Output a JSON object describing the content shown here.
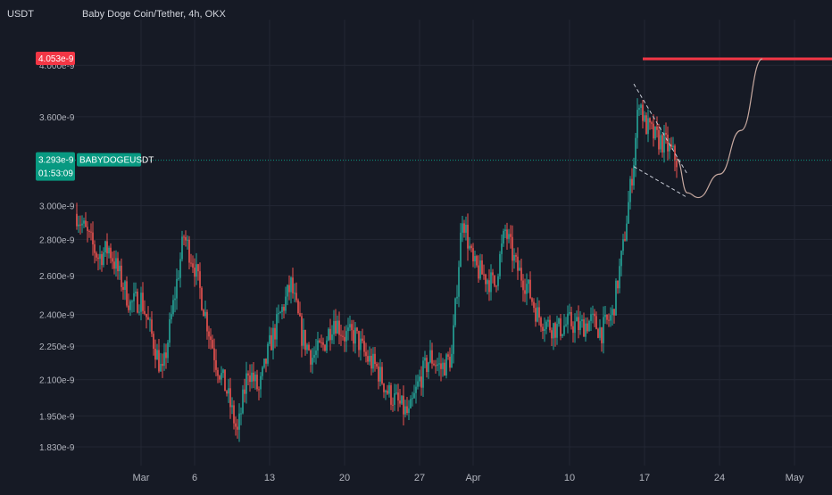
{
  "header": {
    "currency": "USDT",
    "symbol_title": "Baby Doge Coin/Tether, 4h, OKX"
  },
  "colors": {
    "background": "#161a25",
    "grid": "#232734",
    "up": "#26a69a",
    "down": "#ef5350",
    "resistance": "#f23645",
    "price_label": "#089981",
    "projection": "#c7a9a0",
    "pattern": "#c8ccd6"
  },
  "price_axis": {
    "ticks": [
      "4.000e-9",
      "3.600e-9",
      "3.000e-9",
      "2.800e-9",
      "2.600e-9",
      "2.400e-9",
      "2.250e-9",
      "2.100e-9",
      "1.950e-9",
      "1.830e-9"
    ],
    "resistance_label": "4.053e-9",
    "current_price_label": "3.293e-9",
    "countdown_label": "01:53:09",
    "symbol_tag": "BABYDOGEUSDT"
  },
  "time_axis": {
    "ticks": [
      "Mar",
      "6",
      "13",
      "20",
      "27",
      "Apr",
      "10",
      "17",
      "24",
      "May"
    ]
  },
  "chart_data": {
    "type": "candlestick",
    "title": "Baby Doge Coin/Tether, 4h, OKX",
    "ylabel": "USDT",
    "y_scale": "log",
    "ylim": [
      1.8e-09,
      4.2e-09
    ],
    "xlim": [
      "2023-02-23",
      "2023-05-03"
    ],
    "grid": true,
    "candle_interval": "4h",
    "close_path": [
      [
        "2023-02-23",
        2.95e-09
      ],
      [
        "2023-02-25",
        2.7e-09
      ],
      [
        "2023-02-26",
        2.75e-09
      ],
      [
        "2023-02-28",
        2.45e-09
      ],
      [
        "2023-03-01",
        2.48e-09
      ],
      [
        "2023-03-02",
        2.3e-09
      ],
      [
        "2023-03-03",
        2.12e-09
      ],
      [
        "2023-03-05",
        2.82e-09
      ],
      [
        "2023-03-06",
        2.65e-09
      ],
      [
        "2023-03-07",
        2.4e-09
      ],
      [
        "2023-03-08",
        2.18e-09
      ],
      [
        "2023-03-09",
        2.05e-09
      ],
      [
        "2023-03-10",
        1.88e-09
      ],
      [
        "2023-03-11",
        2.15e-09
      ],
      [
        "2023-03-12",
        2.05e-09
      ],
      [
        "2023-03-13",
        2.25e-09
      ],
      [
        "2023-03-14",
        2.4e-09
      ],
      [
        "2023-03-15",
        2.55e-09
      ],
      [
        "2023-03-16",
        2.3e-09
      ],
      [
        "2023-03-17",
        2.2e-09
      ],
      [
        "2023-03-18",
        2.25e-09
      ],
      [
        "2023-03-19",
        2.38e-09
      ],
      [
        "2023-03-20",
        2.3e-09
      ],
      [
        "2023-03-21",
        2.3e-09
      ],
      [
        "2023-03-22",
        2.2e-09
      ],
      [
        "2023-03-23",
        2.15e-09
      ],
      [
        "2023-03-24",
        2.05e-09
      ],
      [
        "2023-03-25",
        2e-09
      ],
      [
        "2023-03-26",
        1.95e-09
      ],
      [
        "2023-03-27",
        2.1e-09
      ],
      [
        "2023-03-28",
        2.2e-09
      ],
      [
        "2023-03-29",
        2.15e-09
      ],
      [
        "2023-03-30",
        2.2e-09
      ],
      [
        "2023-03-31",
        2.95e-09
      ],
      [
        "2023-04-01",
        2.65e-09
      ],
      [
        "2023-04-02",
        2.6e-09
      ],
      [
        "2023-04-03",
        2.55e-09
      ],
      [
        "2023-04-04",
        2.85e-09
      ],
      [
        "2023-04-05",
        2.65e-09
      ],
      [
        "2023-04-06",
        2.55e-09
      ],
      [
        "2023-04-07",
        2.4e-09
      ],
      [
        "2023-04-08",
        2.35e-09
      ],
      [
        "2023-04-09",
        2.33e-09
      ],
      [
        "2023-04-10",
        2.36e-09
      ],
      [
        "2023-04-11",
        2.34e-09
      ],
      [
        "2023-04-12",
        2.37e-09
      ],
      [
        "2023-04-13",
        2.32e-09
      ],
      [
        "2023-04-14",
        2.4e-09
      ],
      [
        "2023-04-15",
        2.75e-09
      ],
      [
        "2023-04-16",
        3.3e-09
      ],
      [
        "2023-04-16T12:00",
        3.75e-09
      ],
      [
        "2023-04-17",
        3.55e-09
      ],
      [
        "2023-04-18",
        3.45e-09
      ],
      [
        "2023-04-19",
        3.4e-09
      ],
      [
        "2023-04-20",
        3.293e-09
      ]
    ],
    "resistance_level": {
      "value": 4.053e-09,
      "from": "2023-04-16",
      "to": "2023-05-03"
    },
    "current_price": 3.293e-09,
    "falling_wedge": {
      "upper": [
        [
          "2023-04-16",
          3.85e-09
        ],
        [
          "2023-04-21",
          3.2e-09
        ]
      ],
      "lower": [
        [
          "2023-04-16",
          3.25e-09
        ],
        [
          "2023-04-21",
          3.05e-09
        ]
      ]
    },
    "projection_curve": [
      [
        "2023-04-20",
        3.3e-09
      ],
      [
        "2023-04-21",
        3.08e-09
      ],
      [
        "2023-04-22",
        3.05e-09
      ],
      [
        "2023-04-24",
        3.2e-09
      ],
      [
        "2023-04-26",
        3.5e-09
      ],
      [
        "2023-04-28",
        4.053e-09
      ]
    ]
  }
}
